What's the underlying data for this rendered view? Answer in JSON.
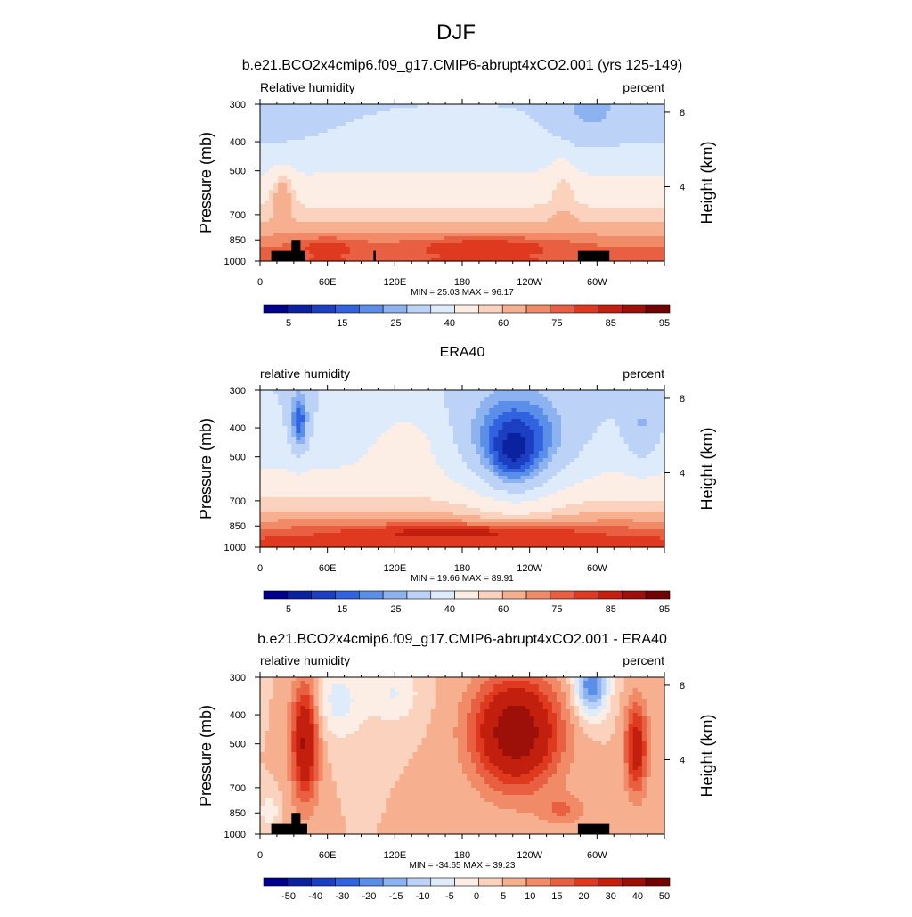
{
  "figure": {
    "title": "DJF"
  },
  "colors": {
    "terrain": "#000000",
    "field_palette": [
      "#00008c",
      "#0b22a0",
      "#1c3fc2",
      "#3163e0",
      "#5b8ee8",
      "#8db2f0",
      "#bcd3f7",
      "#deebfb",
      "#fdeee5",
      "#fbd2bd",
      "#f7b08f",
      "#f18a66",
      "#e95f42",
      "#df3a20",
      "#c21f0f",
      "#9c1009",
      "#720302"
    ],
    "diff_palette": [
      "#00008c",
      "#0b22a0",
      "#1c3fc2",
      "#3163e0",
      "#5b8ee8",
      "#8db2f0",
      "#bcd3f7",
      "#deebfb",
      "#fdeee5",
      "#fbd2bd",
      "#f7b08f",
      "#f18a66",
      "#e95f42",
      "#df3a20",
      "#c21f0f",
      "#9c1009",
      "#720302"
    ]
  },
  "chart_data": [
    {
      "type": "heatmap",
      "title": "b.e21.BCO2x4cmip6.f09_g17.CMIP6-abrupt4xCO2.001 (yrs 125-149)",
      "left_label": "Relative humidity",
      "right_label": "percent",
      "ylabel": "Pressure (mb)",
      "ylabel_right": "Height (km)",
      "x_ticks": [
        "0",
        "60E",
        "120E",
        "180",
        "120W",
        "60W"
      ],
      "x_tick_lon": [
        0,
        60,
        120,
        180,
        240,
        300
      ],
      "xlim": [
        0,
        360
      ],
      "y_ticks": [
        "300",
        "400",
        "500",
        "700",
        "850",
        "1000"
      ],
      "y_tick_p": [
        300,
        400,
        500,
        700,
        850,
        1000
      ],
      "ylim": [
        300,
        1000
      ],
      "height_ticks": [
        "8",
        "4"
      ],
      "height_tick_km": [
        8,
        4
      ],
      "stats": "MIN =  25.03  MAX =  96.17",
      "colorbar_labels": [
        "5",
        "15",
        "25",
        "40",
        "60",
        "75",
        "85",
        "95"
      ],
      "field": "model",
      "terrain": [
        {
          "lon0": 10,
          "lon1": 40,
          "p": 925
        },
        {
          "lon0": 28,
          "lon1": 36,
          "p": 850
        },
        {
          "lon0": 101,
          "lon1": 103,
          "p": 925
        },
        {
          "lon0": 283,
          "lon1": 311,
          "p": 925
        }
      ]
    },
    {
      "type": "heatmap",
      "title": "ERA40",
      "left_label": "relative humidity",
      "right_label": "percent",
      "ylabel": "Pressure (mb)",
      "ylabel_right": "Height (km)",
      "x_ticks": [
        "0",
        "60E",
        "120E",
        "180",
        "120W",
        "60W"
      ],
      "x_tick_lon": [
        0,
        60,
        120,
        180,
        240,
        300
      ],
      "xlim": [
        0,
        360
      ],
      "y_ticks": [
        "300",
        "400",
        "500",
        "700",
        "850",
        "1000"
      ],
      "y_tick_p": [
        300,
        400,
        500,
        700,
        850,
        1000
      ],
      "ylim": [
        300,
        1000
      ],
      "height_ticks": [
        "8",
        "4"
      ],
      "height_tick_km": [
        8,
        4
      ],
      "stats": "MIN =  19.66  MAX =  89.91",
      "colorbar_labels": [
        "5",
        "15",
        "25",
        "40",
        "60",
        "75",
        "85",
        "95"
      ],
      "field": "obs",
      "terrain": []
    },
    {
      "type": "heatmap",
      "title": "b.e21.BCO2x4cmip6.f09_g17.CMIP6-abrupt4xCO2.001 - ERA40",
      "left_label": "relative humidity",
      "right_label": "percent",
      "ylabel": "Pressure (mb)",
      "ylabel_right": "Height (km)",
      "x_ticks": [
        "0",
        "60E",
        "120E",
        "180",
        "120W",
        "60W"
      ],
      "x_tick_lon": [
        0,
        60,
        120,
        180,
        240,
        300
      ],
      "xlim": [
        0,
        360
      ],
      "y_ticks": [
        "300",
        "400",
        "500",
        "700",
        "850",
        "1000"
      ],
      "y_tick_p": [
        300,
        400,
        500,
        700,
        850,
        1000
      ],
      "ylim": [
        300,
        1000
      ],
      "height_ticks": [
        "8",
        "4"
      ],
      "height_tick_km": [
        8,
        4
      ],
      "stats": "MIN = -34.65  MAX =  39.23",
      "colorbar_labels": [
        "-50",
        "-40",
        "-30",
        "-20",
        "-15",
        "-10",
        "-5",
        "0",
        "5",
        "10",
        "15",
        "20",
        "30",
        "40",
        "50"
      ],
      "field": "diff",
      "terrain": [
        {
          "lon0": 10,
          "lon1": 42,
          "p": 925
        },
        {
          "lon0": 28,
          "lon1": 36,
          "p": 850
        },
        {
          "lon0": 283,
          "lon1": 311,
          "p": 925
        }
      ]
    }
  ]
}
